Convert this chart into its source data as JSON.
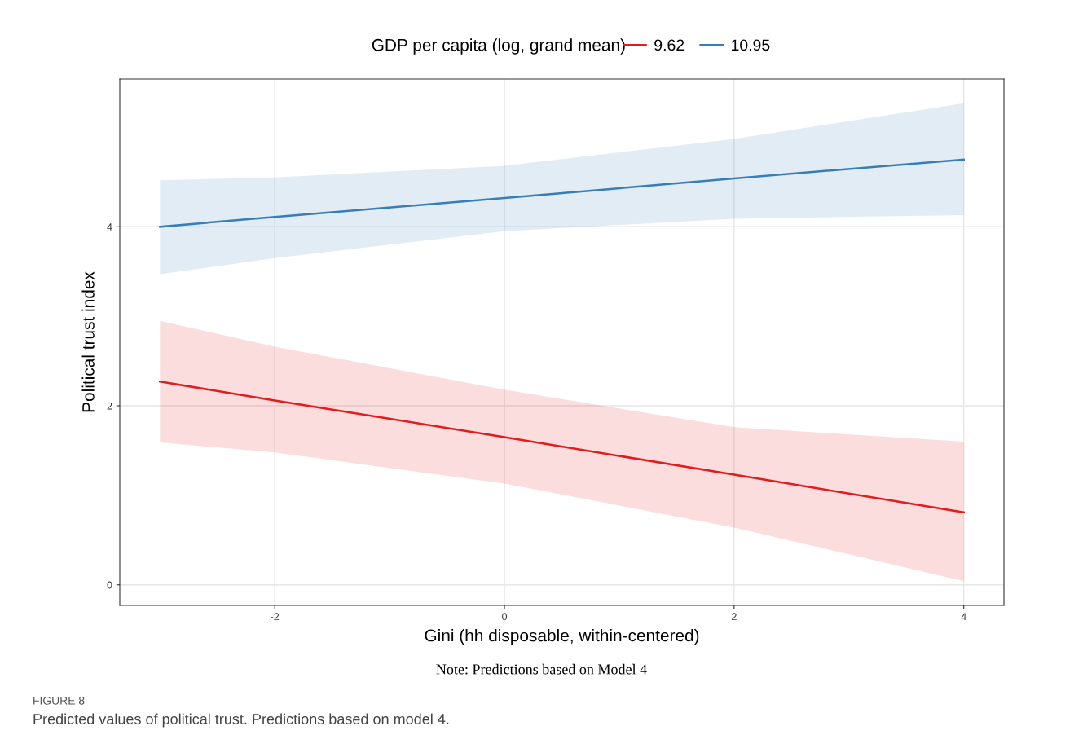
{
  "chart_data": {
    "type": "line",
    "xlabel": "Gini (hh disposable, within-centered)",
    "ylabel": "Political trust index",
    "legend_title": "GDP per capita (log, grand mean)",
    "legend": "top",
    "grid": true,
    "x": [
      -3,
      -2,
      0,
      2,
      4
    ],
    "series": [
      {
        "name": "9.62",
        "color": "#e41a1c",
        "values": [
          2.27,
          2.06,
          1.65,
          1.23,
          0.81
        ],
        "lower": [
          1.59,
          1.48,
          1.13,
          0.64,
          0.04
        ],
        "upper": [
          2.95,
          2.66,
          2.18,
          1.76,
          1.6
        ]
      },
      {
        "name": "10.95",
        "color": "#377eb8",
        "values": [
          4.0,
          4.11,
          4.32,
          4.54,
          4.75
        ],
        "lower": [
          3.47,
          3.65,
          3.95,
          4.09,
          4.13
        ],
        "upper": [
          4.52,
          4.55,
          4.68,
          4.98,
          5.38
        ]
      }
    ],
    "xlim": [
      -3.35,
      4.35
    ],
    "xticks": [
      -2,
      0,
      2,
      4
    ],
    "ylim": [
      -0.23,
      5.65
    ],
    "yticks": [
      0,
      2,
      4
    ],
    "annotations": [
      "Note: Predictions based on Model 4",
      "FIGURE 8",
      "Predicted values of political trust. Predictions based on model 4."
    ]
  }
}
